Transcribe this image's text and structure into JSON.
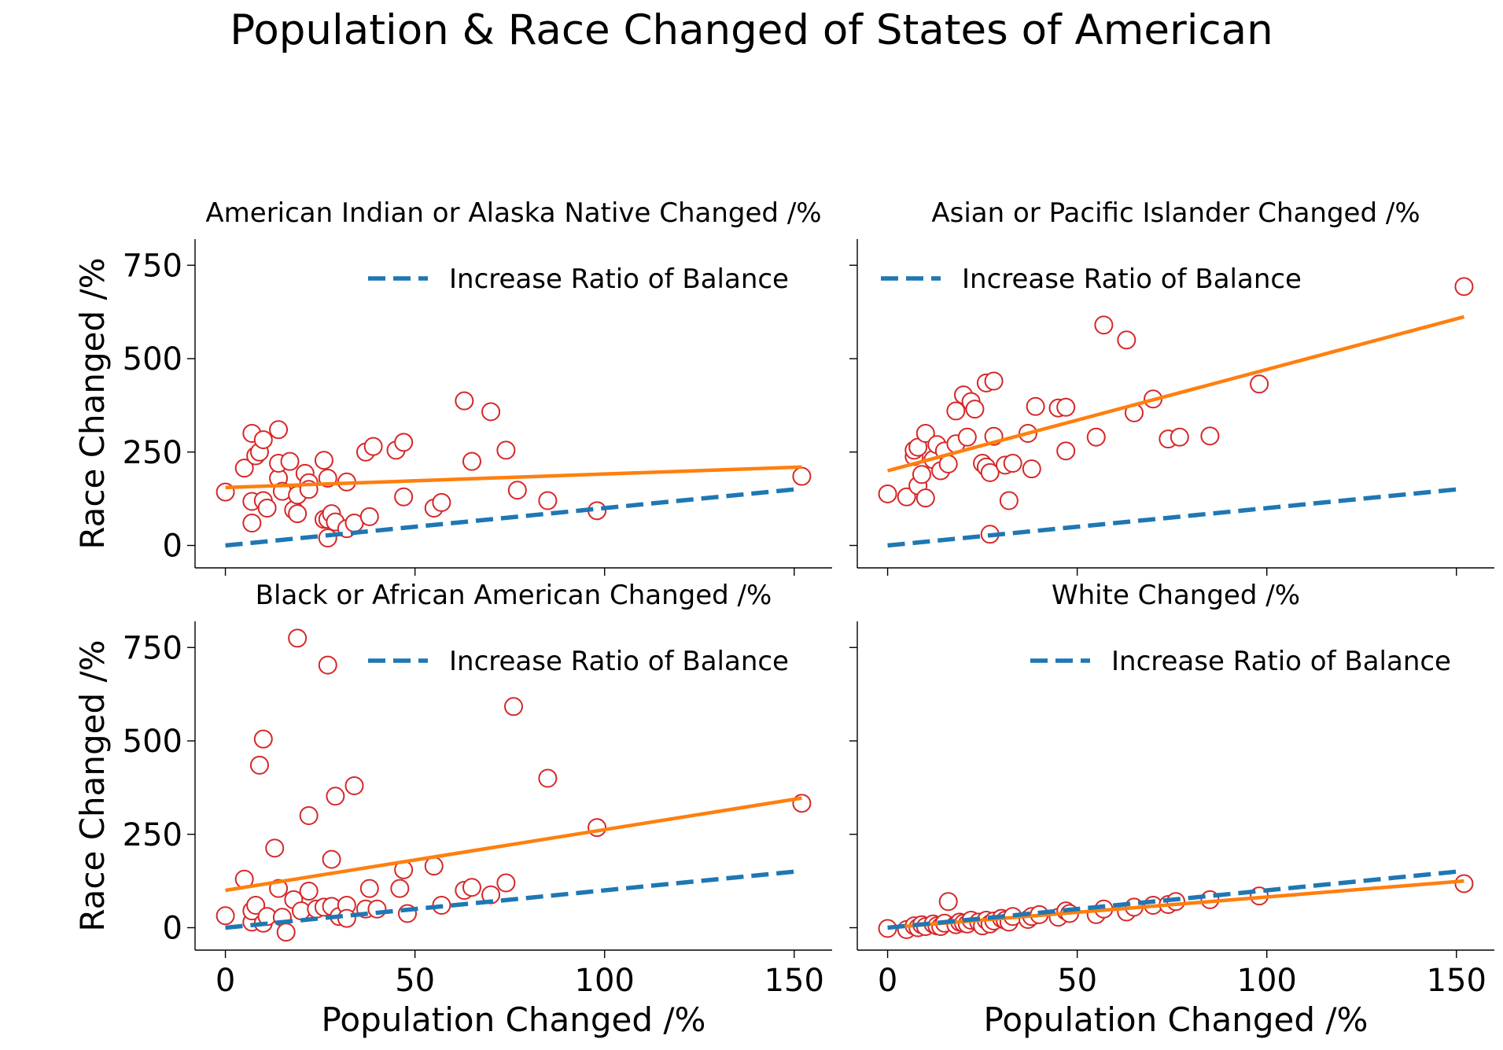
{
  "title": "Population & Race Changed of States of American",
  "chart_data": [
    {
      "type": "scatter",
      "title": "American Indian or Alaska Native Changed /%",
      "xlabel": "",
      "ylabel": "Race Changed /%",
      "xlim": [
        -8,
        160
      ],
      "ylim": [
        -60,
        820
      ],
      "xticks": [
        0,
        50,
        100,
        150
      ],
      "yticks": [
        0,
        250,
        500,
        750
      ],
      "show_xtick_labels": false,
      "show_ytick_labels": true,
      "legend": {
        "label": "Increase Ratio of Balance",
        "loc": "upper right"
      },
      "balance_line": {
        "x": [
          0,
          150
        ],
        "y": [
          0,
          150
        ]
      },
      "fit_line": {
        "x": [
          0,
          152
        ],
        "y": [
          155,
          210
        ]
      },
      "points": [
        [
          0,
          143
        ],
        [
          5,
          207
        ],
        [
          7,
          300
        ],
        [
          8,
          240
        ],
        [
          7,
          118
        ],
        [
          7,
          60
        ],
        [
          9,
          250
        ],
        [
          10,
          283
        ],
        [
          10,
          120
        ],
        [
          11,
          100
        ],
        [
          14,
          180
        ],
        [
          14,
          310
        ],
        [
          14,
          220
        ],
        [
          15,
          145
        ],
        [
          17,
          225
        ],
        [
          18,
          95
        ],
        [
          19,
          85
        ],
        [
          19,
          135
        ],
        [
          21,
          193
        ],
        [
          22,
          168
        ],
        [
          22,
          150
        ],
        [
          26,
          228
        ],
        [
          26,
          70
        ],
        [
          27,
          70
        ],
        [
          27,
          20
        ],
        [
          27,
          180
        ],
        [
          28,
          85
        ],
        [
          29,
          63
        ],
        [
          32,
          170
        ],
        [
          32,
          45
        ],
        [
          34,
          60
        ],
        [
          37,
          250
        ],
        [
          38,
          77
        ],
        [
          39,
          265
        ],
        [
          45,
          255
        ],
        [
          47,
          276
        ],
        [
          47,
          130
        ],
        [
          55,
          100
        ],
        [
          57,
          115
        ],
        [
          63,
          387
        ],
        [
          65,
          225
        ],
        [
          70,
          358
        ],
        [
          74,
          255
        ],
        [
          77,
          148
        ],
        [
          85,
          120
        ],
        [
          98,
          93
        ],
        [
          152,
          185
        ]
      ]
    },
    {
      "type": "scatter",
      "title": "Asian or Pacific Islander Changed /%",
      "xlabel": "",
      "ylabel": "",
      "xlim": [
        -8,
        160
      ],
      "ylim": [
        -60,
        820
      ],
      "xticks": [
        0,
        50,
        100,
        150
      ],
      "yticks": [
        0,
        250,
        500,
        750
      ],
      "show_xtick_labels": false,
      "show_ytick_labels": false,
      "legend": {
        "label": "Increase Ratio of Balance",
        "loc": "upper left"
      },
      "balance_line": {
        "x": [
          0,
          150
        ],
        "y": [
          0,
          150
        ]
      },
      "fit_line": {
        "x": [
          0,
          152
        ],
        "y": [
          200,
          612
        ]
      },
      "points": [
        [
          0,
          138
        ],
        [
          5,
          130
        ],
        [
          7,
          238
        ],
        [
          7,
          255
        ],
        [
          8,
          160
        ],
        [
          8,
          263
        ],
        [
          9,
          190
        ],
        [
          10,
          300
        ],
        [
          10,
          127
        ],
        [
          12,
          230
        ],
        [
          13,
          270
        ],
        [
          14,
          200
        ],
        [
          15,
          253
        ],
        [
          16,
          218
        ],
        [
          18,
          360
        ],
        [
          18,
          272
        ],
        [
          20,
          403
        ],
        [
          21,
          290
        ],
        [
          22,
          385
        ],
        [
          23,
          365
        ],
        [
          25,
          220
        ],
        [
          26,
          210
        ],
        [
          26,
          435
        ],
        [
          27,
          30
        ],
        [
          27,
          195
        ],
        [
          28,
          440
        ],
        [
          28,
          292
        ],
        [
          31,
          215
        ],
        [
          32,
          120
        ],
        [
          33,
          220
        ],
        [
          37,
          300
        ],
        [
          38,
          205
        ],
        [
          39,
          372
        ],
        [
          45,
          368
        ],
        [
          47,
          370
        ],
        [
          47,
          253
        ],
        [
          55,
          290
        ],
        [
          57,
          590
        ],
        [
          63,
          550
        ],
        [
          65,
          355
        ],
        [
          70,
          392
        ],
        [
          74,
          285
        ],
        [
          77,
          290
        ],
        [
          85,
          293
        ],
        [
          98,
          432
        ],
        [
          152,
          693
        ]
      ]
    },
    {
      "type": "scatter",
      "title": "Black or African American Changed /%",
      "xlabel": "Population Changed /%",
      "ylabel": "Race Changed /%",
      "xlim": [
        -8,
        160
      ],
      "ylim": [
        -60,
        820
      ],
      "xticks": [
        0,
        50,
        100,
        150
      ],
      "yticks": [
        0,
        250,
        500,
        750
      ],
      "show_xtick_labels": true,
      "show_ytick_labels": true,
      "legend": {
        "label": "Increase Ratio of Balance",
        "loc": "upper right"
      },
      "balance_line": {
        "x": [
          0,
          150
        ],
        "y": [
          0,
          150
        ]
      },
      "fit_line": {
        "x": [
          0,
          152
        ],
        "y": [
          100,
          347
        ]
      },
      "points": [
        [
          0,
          32
        ],
        [
          5,
          130
        ],
        [
          7,
          15
        ],
        [
          7,
          45
        ],
        [
          8,
          60
        ],
        [
          9,
          435
        ],
        [
          10,
          505
        ],
        [
          10,
          12
        ],
        [
          11,
          30
        ],
        [
          13,
          213
        ],
        [
          14,
          105
        ],
        [
          15,
          28
        ],
        [
          16,
          -12
        ],
        [
          18,
          75
        ],
        [
          19,
          775
        ],
        [
          20,
          45
        ],
        [
          22,
          300
        ],
        [
          22,
          98
        ],
        [
          24,
          50
        ],
        [
          26,
          55
        ],
        [
          27,
          703
        ],
        [
          28,
          183
        ],
        [
          28,
          57
        ],
        [
          29,
          352
        ],
        [
          30,
          30
        ],
        [
          32,
          60
        ],
        [
          32,
          25
        ],
        [
          34,
          380
        ],
        [
          37,
          50
        ],
        [
          38,
          105
        ],
        [
          40,
          50
        ],
        [
          46,
          105
        ],
        [
          47,
          155
        ],
        [
          48,
          38
        ],
        [
          55,
          165
        ],
        [
          57,
          60
        ],
        [
          63,
          100
        ],
        [
          65,
          108
        ],
        [
          70,
          88
        ],
        [
          74,
          120
        ],
        [
          76,
          592
        ],
        [
          85,
          400
        ],
        [
          98,
          268
        ],
        [
          152,
          333
        ]
      ]
    },
    {
      "type": "scatter",
      "title": "White Changed /%",
      "xlabel": "Population Changed /%",
      "ylabel": "",
      "xlim": [
        -8,
        160
      ],
      "ylim": [
        -60,
        820
      ],
      "xticks": [
        0,
        50,
        100,
        150
      ],
      "yticks": [
        0,
        250,
        500,
        750
      ],
      "show_xtick_labels": true,
      "show_ytick_labels": false,
      "legend": {
        "label": "Increase Ratio of Balance",
        "loc": "upper right"
      },
      "balance_line": {
        "x": [
          0,
          150
        ],
        "y": [
          0,
          150
        ]
      },
      "fit_line": {
        "x": [
          0,
          152
        ],
        "y": [
          0,
          125
        ]
      },
      "points": [
        [
          0,
          -2
        ],
        [
          5,
          -5
        ],
        [
          7,
          5
        ],
        [
          8,
          0
        ],
        [
          9,
          8
        ],
        [
          10,
          3
        ],
        [
          12,
          10
        ],
        [
          13,
          5
        ],
        [
          14,
          3
        ],
        [
          15,
          12
        ],
        [
          16,
          70
        ],
        [
          18,
          8
        ],
        [
          19,
          15
        ],
        [
          20,
          12
        ],
        [
          21,
          10
        ],
        [
          22,
          20
        ],
        [
          24,
          15
        ],
        [
          25,
          5
        ],
        [
          26,
          20
        ],
        [
          27,
          10
        ],
        [
          28,
          18
        ],
        [
          30,
          25
        ],
        [
          31,
          20
        ],
        [
          32,
          15
        ],
        [
          33,
          30
        ],
        [
          37,
          22
        ],
        [
          38,
          30
        ],
        [
          40,
          35
        ],
        [
          45,
          28
        ],
        [
          47,
          45
        ],
        [
          48,
          38
        ],
        [
          55,
          35
        ],
        [
          57,
          50
        ],
        [
          63,
          42
        ],
        [
          65,
          55
        ],
        [
          70,
          60
        ],
        [
          74,
          62
        ],
        [
          76,
          70
        ],
        [
          85,
          75
        ],
        [
          98,
          85
        ],
        [
          152,
          118
        ]
      ]
    }
  ]
}
